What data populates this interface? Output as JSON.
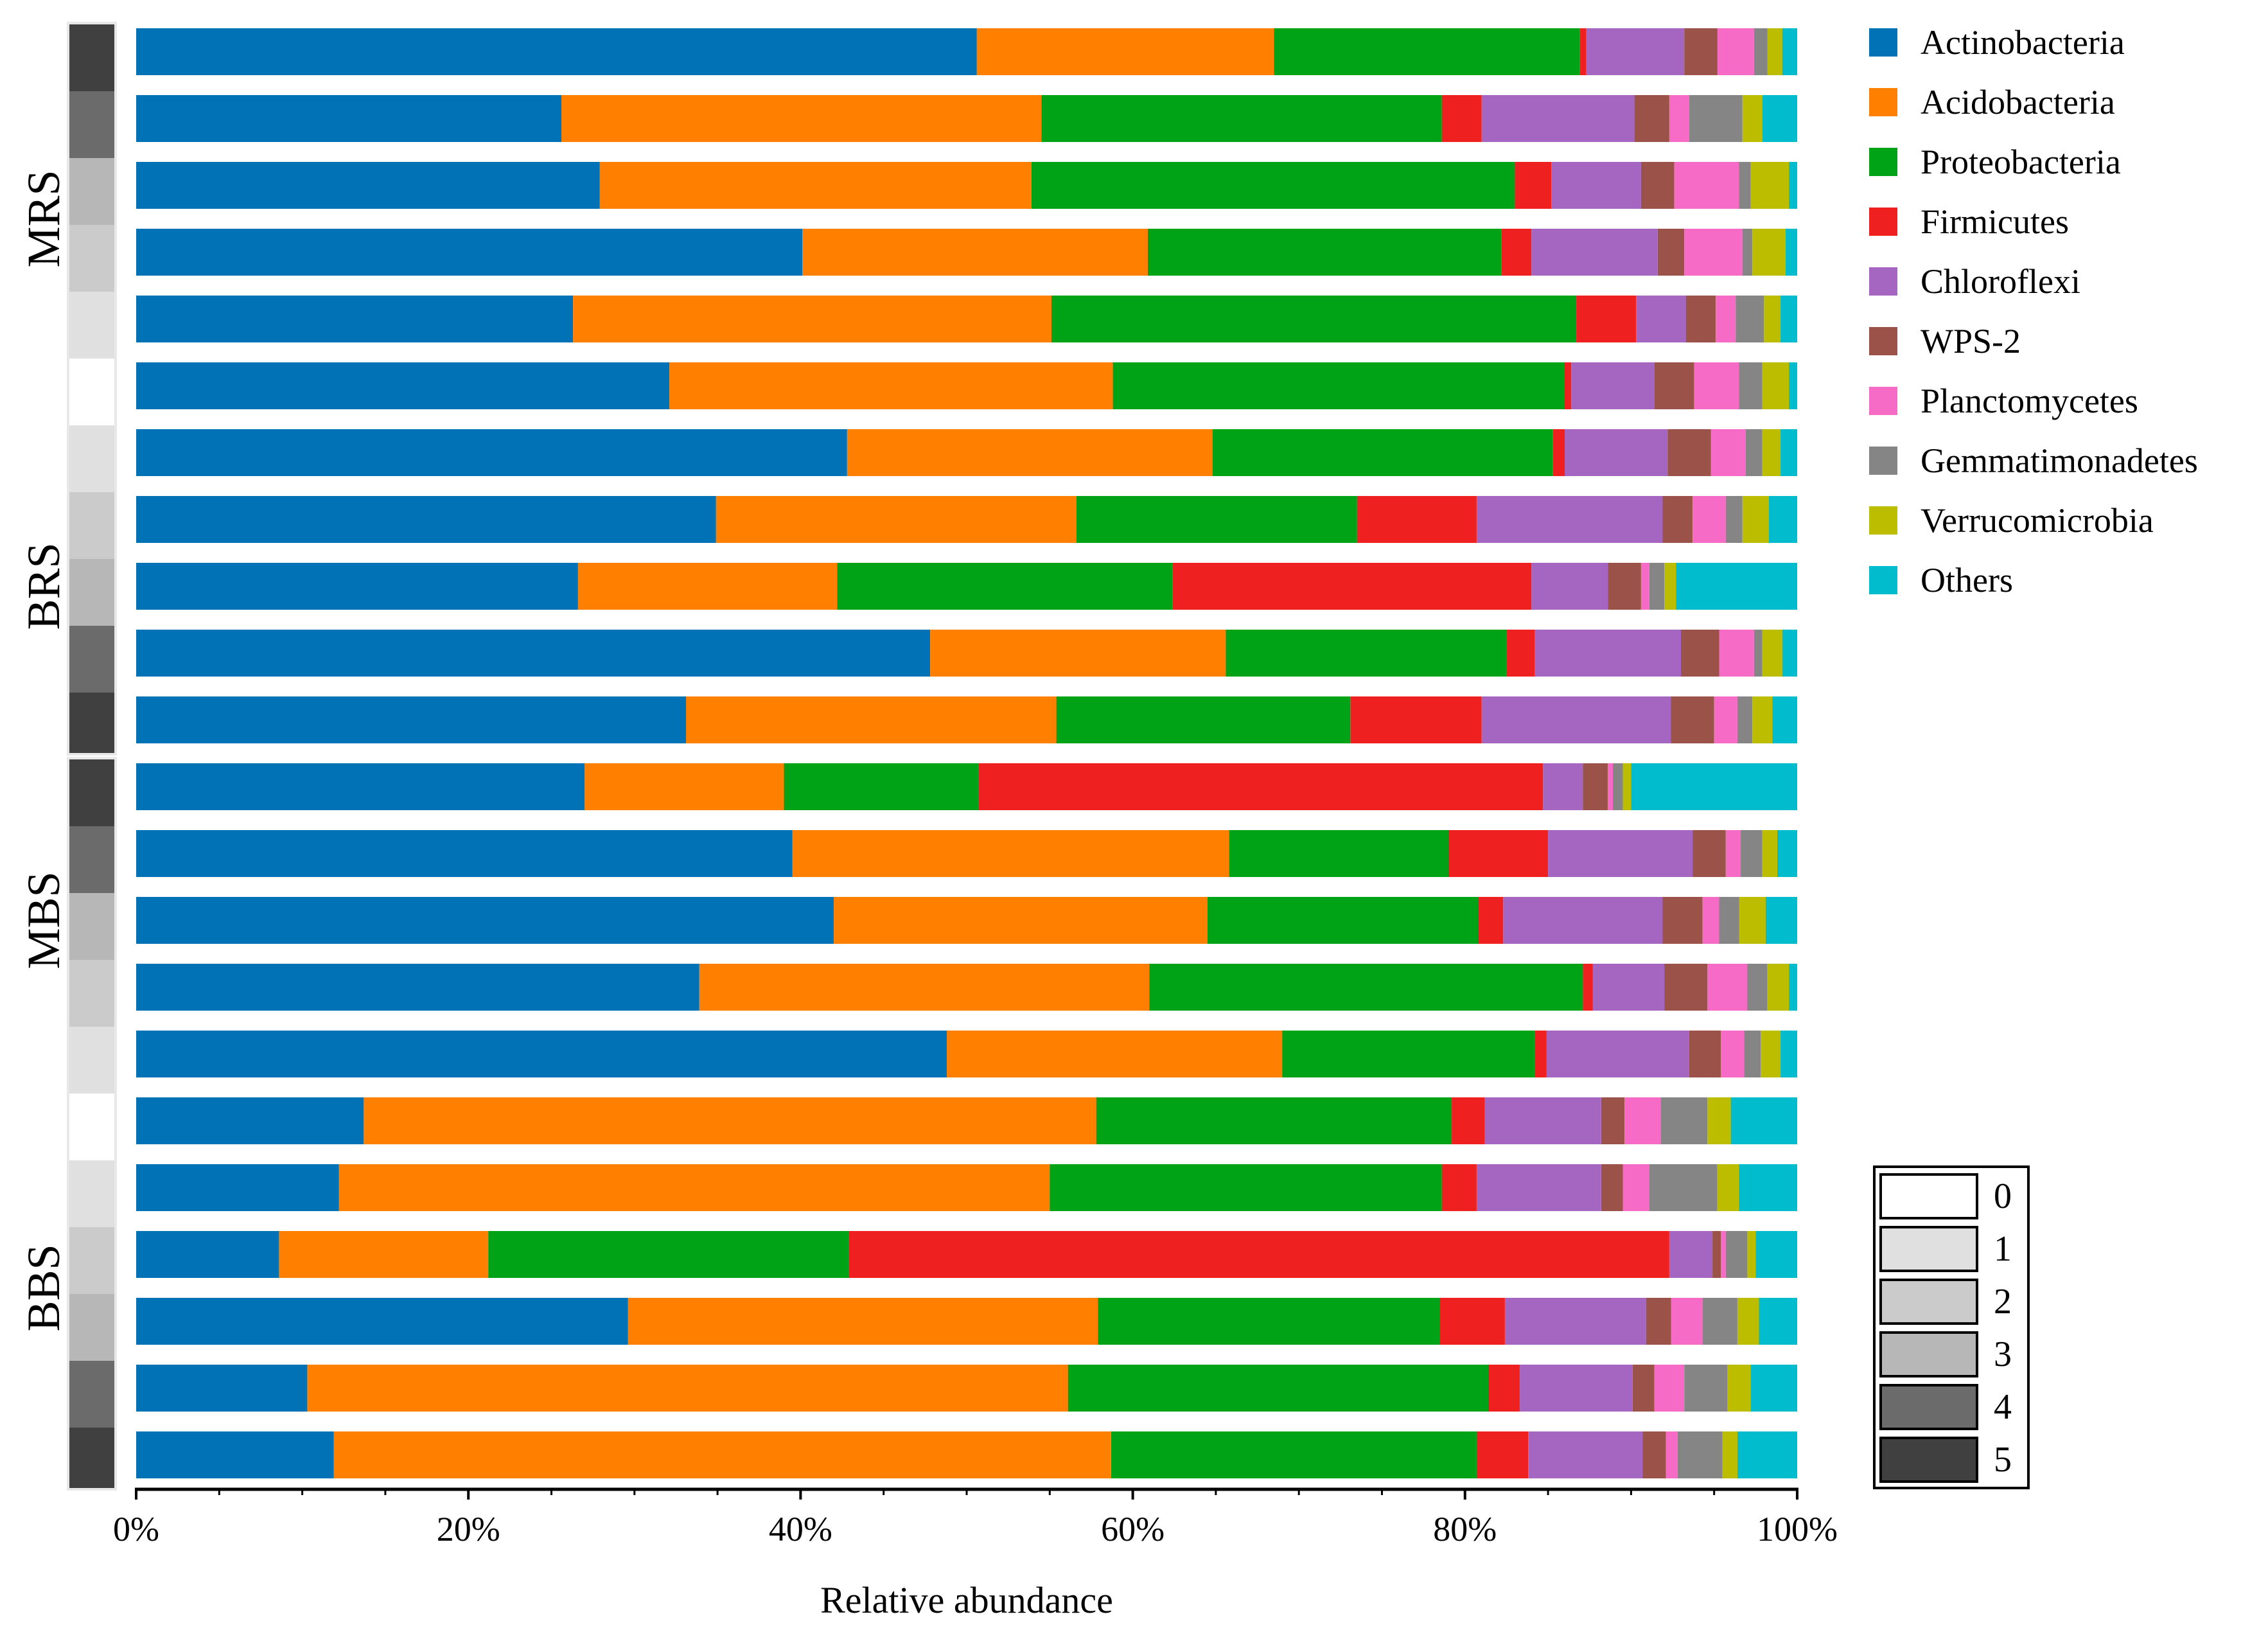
{
  "chart_data": {
    "type": "bar",
    "orientation": "horizontal",
    "stacked": true,
    "normalized": true,
    "title": "",
    "xlabel": "Relative abundance",
    "ylabel": "",
    "xlim": [
      0,
      100
    ],
    "x_tick_labels": [
      "0%",
      "20%",
      "40%",
      "60%",
      "80%",
      "100%"
    ],
    "groups": [
      {
        "label": "MRS",
        "bars": [
          0,
          5
        ]
      },
      {
        "label": "BRS",
        "bars": [
          6,
          10
        ]
      },
      {
        "label": "MBS",
        "bars": [
          11,
          15
        ]
      },
      {
        "label": "BBS",
        "bars": [
          16,
          21
        ]
      }
    ],
    "series_names": [
      "Actinobacteria",
      "Acidobacteria",
      "Proteobacteria",
      "Firmicutes",
      "Chloroflexi",
      "WPS-2",
      "Planctomycetes",
      "Gemmatimonadetes",
      "Verrucomicrobia",
      "Others"
    ],
    "series_colors": [
      "#0072b5",
      "#ff7f00",
      "#00a316",
      "#ee2020",
      "#a566c1",
      "#9b5249",
      "#f66bc6",
      "#858585",
      "#bdbd00",
      "#00bccc"
    ],
    "bars": [
      {
        "level": 5,
        "values": [
          50.6,
          17.9,
          18.4,
          0.4,
          5.9,
          2.0,
          2.2,
          0.8,
          0.9,
          0.9
        ]
      },
      {
        "level": 4,
        "values": [
          25.6,
          28.9,
          24.1,
          2.4,
          9.2,
          2.1,
          1.2,
          3.2,
          1.2,
          2.1
        ]
      },
      {
        "level": 3,
        "values": [
          27.9,
          26.0,
          29.1,
          2.2,
          5.4,
          2.0,
          3.9,
          0.7,
          2.3,
          0.5
        ]
      },
      {
        "level": 2,
        "values": [
          40.1,
          20.8,
          21.3,
          1.8,
          7.6,
          1.6,
          3.5,
          0.6,
          2.0,
          0.7
        ]
      },
      {
        "level": 1,
        "values": [
          26.3,
          28.8,
          31.6,
          3.6,
          3.0,
          1.8,
          1.2,
          1.7,
          1.0,
          1.0
        ]
      },
      {
        "level": 0,
        "values": [
          32.1,
          26.7,
          27.2,
          0.4,
          5.0,
          2.4,
          2.7,
          1.4,
          1.6,
          0.5
        ]
      },
      {
        "level": 1,
        "values": [
          42.8,
          22.0,
          20.5,
          0.7,
          6.2,
          2.6,
          2.1,
          1.0,
          1.1,
          1.0
        ]
      },
      {
        "level": 2,
        "values": [
          34.9,
          21.7,
          16.9,
          7.2,
          11.2,
          1.8,
          2.0,
          1.0,
          1.6,
          1.7
        ]
      },
      {
        "level": 3,
        "values": [
          26.6,
          15.6,
          20.2,
          21.6,
          4.6,
          2.0,
          0.5,
          0.9,
          0.7,
          7.3
        ]
      },
      {
        "level": 4,
        "values": [
          47.8,
          17.8,
          16.9,
          1.7,
          8.8,
          2.3,
          2.1,
          0.5,
          1.2,
          0.9
        ]
      },
      {
        "level": 5,
        "values": [
          33.1,
          22.3,
          17.7,
          7.9,
          11.4,
          2.6,
          1.4,
          0.9,
          1.2,
          1.5
        ]
      },
      {
        "level": 5,
        "values": [
          27.0,
          12.0,
          11.7,
          34.0,
          2.4,
          1.5,
          0.3,
          0.6,
          0.5,
          10.0
        ]
      },
      {
        "level": 4,
        "values": [
          39.5,
          26.3,
          13.2,
          6.0,
          8.7,
          2.0,
          0.9,
          1.3,
          0.9,
          1.2
        ]
      },
      {
        "level": 3,
        "values": [
          42.0,
          22.5,
          16.3,
          1.5,
          9.6,
          2.4,
          1.0,
          1.2,
          1.6,
          1.9
        ]
      },
      {
        "level": 2,
        "values": [
          33.9,
          27.1,
          26.1,
          0.6,
          4.3,
          2.6,
          2.4,
          1.2,
          1.3,
          0.5
        ]
      },
      {
        "level": 1,
        "values": [
          48.8,
          20.2,
          15.2,
          0.7,
          8.6,
          1.9,
          1.4,
          1.0,
          1.2,
          1.0
        ]
      },
      {
        "level": 0,
        "values": [
          13.7,
          44.1,
          21.4,
          2.0,
          7.0,
          1.4,
          2.2,
          2.8,
          1.4,
          4.0
        ]
      },
      {
        "level": 1,
        "values": [
          12.2,
          42.8,
          23.6,
          2.1,
          7.5,
          1.3,
          1.6,
          4.1,
          1.3,
          3.5
        ]
      },
      {
        "level": 2,
        "values": [
          8.6,
          12.6,
          21.7,
          49.4,
          2.6,
          0.5,
          0.3,
          1.3,
          0.5,
          2.5
        ]
      },
      {
        "level": 3,
        "values": [
          29.6,
          28.3,
          20.6,
          3.9,
          8.5,
          1.5,
          1.9,
          2.1,
          1.3,
          2.3
        ]
      },
      {
        "level": 4,
        "values": [
          10.3,
          45.8,
          25.3,
          1.9,
          6.8,
          1.3,
          1.8,
          2.6,
          1.4,
          2.8
        ]
      },
      {
        "level": 5,
        "values": [
          11.9,
          46.8,
          22.0,
          3.1,
          6.9,
          1.4,
          0.7,
          2.7,
          0.9,
          3.6
        ]
      }
    ],
    "level_key": {
      "labels": [
        "0",
        "1",
        "2",
        "3",
        "4",
        "5"
      ],
      "colors": [
        "#ffffff",
        "#e0e0e0",
        "#cbcbcb",
        "#b7b7b7",
        "#6b6b6b",
        "#404040"
      ]
    },
    "grid": false,
    "legend_position": "right"
  }
}
